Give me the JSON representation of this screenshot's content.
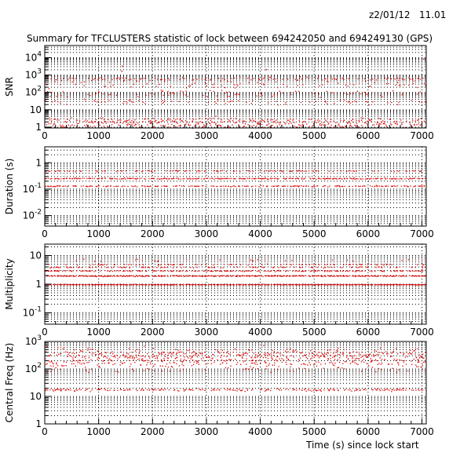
{
  "header": {
    "timestamp": "z2/01/12   11.01",
    "title": "Summary for TFCLUSTERS statistic of lock between 694242050 and 694249130 (GPS)",
    "xlabel": "Time (s) since lock start"
  },
  "colors": {
    "points": "#e00000",
    "grid": "#000000",
    "frame": "#000000"
  },
  "chart_data": [
    {
      "type": "scatter",
      "ylabel": "SNR",
      "yscale": "log",
      "xlim": [
        0,
        7080
      ],
      "ylim": [
        0.9,
        50000
      ],
      "grid": true,
      "yticks": [
        {
          "v": 1,
          "t": "1"
        },
        {
          "v": 10,
          "t": "10"
        },
        {
          "v": 100,
          "t": "10^2"
        },
        {
          "v": 1000,
          "t": "10^3"
        },
        {
          "v": 10000,
          "t": "10^4"
        }
      ],
      "xticks": [
        0,
        1000,
        2000,
        3000,
        4000,
        5000,
        6000,
        7000
      ],
      "xticklabels": [
        "0",
        "1000",
        "2000",
        "3000",
        "4000",
        "5000",
        "6000",
        "7000"
      ],
      "bands": [
        {
          "y": 1.5,
          "spread": 0.12,
          "density": 0.65
        },
        {
          "y": 2.6,
          "spread": 0.08,
          "density": 0.4
        },
        {
          "y": 30,
          "spread": 0.08,
          "density": 0.18
        },
        {
          "y": 90,
          "spread": 0.1,
          "density": 0.22
        },
        {
          "y": 300,
          "spread": 0.1,
          "density": 0.2
        },
        {
          "y": 650,
          "spread": 0.06,
          "density": 0.28
        }
      ],
      "outliers": [
        {
          "x": 1430,
          "y": 3500
        },
        {
          "x": 4100,
          "y": 2200
        },
        {
          "x": 1420,
          "y": 1800
        },
        {
          "x": 7020,
          "y": 9000
        }
      ]
    },
    {
      "type": "scatter",
      "ylabel": "Duration (s)",
      "yscale": "log",
      "xlim": [
        0,
        7080
      ],
      "ylim": [
        0.004,
        4
      ],
      "grid": true,
      "yticks": [
        {
          "v": 0.01,
          "t": "10^-2"
        },
        {
          "v": 0.1,
          "t": "10^-1"
        },
        {
          "v": 1,
          "t": "1"
        }
      ],
      "xticks": [
        0,
        1000,
        2000,
        3000,
        4000,
        5000,
        6000,
        7000
      ],
      "xticklabels": [
        "0",
        "1000",
        "2000",
        "3000",
        "4000",
        "5000",
        "6000",
        "7000"
      ],
      "bands": [
        {
          "y": 0.5,
          "spread": 0.01,
          "density": 0.3
        },
        {
          "y": 0.26,
          "spread": 0.01,
          "density": 0.7
        },
        {
          "y": 0.135,
          "spread": 0.01,
          "density": 0.55
        }
      ],
      "outliers": []
    },
    {
      "type": "scatter",
      "ylabel": "Multiplicity",
      "yscale": "log",
      "xlim": [
        0,
        7080
      ],
      "ylim": [
        0.04,
        25
      ],
      "grid": true,
      "yticks": [
        {
          "v": 0.1,
          "t": "10^-1"
        },
        {
          "v": 1,
          "t": "1"
        },
        {
          "v": 10,
          "t": "10"
        }
      ],
      "xticks": [
        0,
        1000,
        2000,
        3000,
        4000,
        5000,
        6000,
        7000
      ],
      "xticklabels": [
        "0",
        "1000",
        "2000",
        "3000",
        "4000",
        "5000",
        "6000",
        "7000"
      ],
      "bands": [
        {
          "y": 1,
          "spread": 0.005,
          "density": 0.95
        },
        {
          "y": 2,
          "spread": 0.008,
          "density": 0.85
        },
        {
          "y": 3,
          "spread": 0.008,
          "density": 0.5
        },
        {
          "y": 4,
          "spread": 0.008,
          "density": 0.3
        },
        {
          "y": 5,
          "spread": 0.008,
          "density": 0.2
        },
        {
          "y": 7,
          "spread": 0.02,
          "density": 0.05
        }
      ],
      "outliers": []
    },
    {
      "type": "scatter",
      "ylabel": "Central Freq (Hz)",
      "yscale": "log",
      "xlim": [
        0,
        7080
      ],
      "ylim": [
        1,
        1000
      ],
      "grid": true,
      "yticks": [
        {
          "v": 1,
          "t": "1"
        },
        {
          "v": 10,
          "t": "10"
        },
        {
          "v": 100,
          "t": "10^2"
        },
        {
          "v": 1000,
          "t": "10^3"
        }
      ],
      "xticks": [
        0,
        1000,
        2000,
        3000,
        4000,
        5000,
        6000,
        7000
      ],
      "xticklabels": [
        "0",
        "1000",
        "2000",
        "3000",
        "4000",
        "5000",
        "6000",
        "7000"
      ],
      "bands": [
        {
          "y": 380,
          "spread": 0.1,
          "density": 0.7
        },
        {
          "y": 250,
          "spread": 0.08,
          "density": 0.45
        },
        {
          "y": 160,
          "spread": 0.06,
          "density": 0.35
        },
        {
          "y": 100,
          "spread": 0.06,
          "density": 0.2
        },
        {
          "y": 18,
          "spread": 0.02,
          "density": 0.5
        }
      ],
      "outliers": []
    }
  ]
}
